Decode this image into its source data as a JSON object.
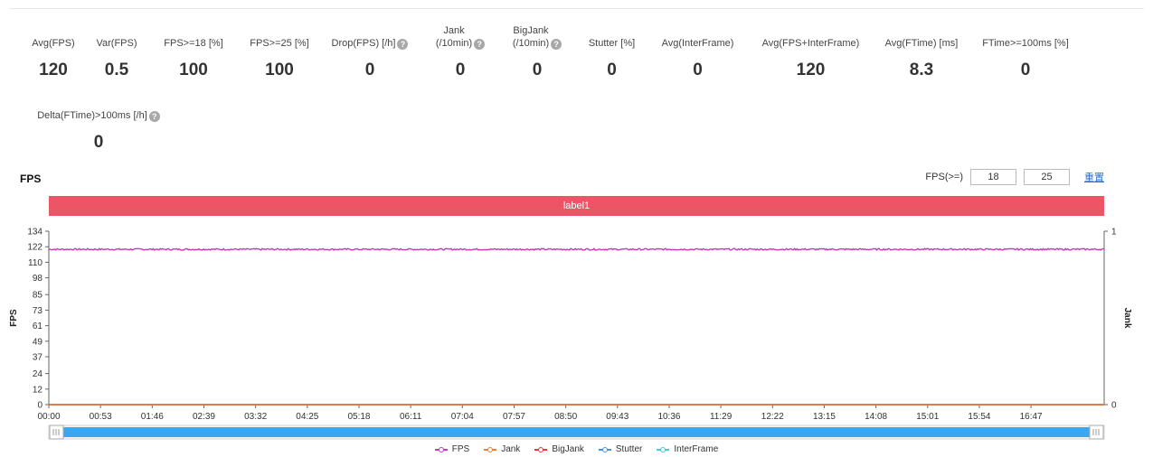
{
  "stats_row1": [
    {
      "label": "Avg(FPS)",
      "value": "120",
      "help": false
    },
    {
      "label": "Var(FPS)",
      "value": "0.5",
      "help": false
    },
    {
      "label": "FPS>=18 [%]",
      "value": "100",
      "help": false
    },
    {
      "label": "FPS>=25 [%]",
      "value": "100",
      "help": false
    },
    {
      "label": "Drop(FPS) [/h]",
      "value": "0",
      "help": true
    },
    {
      "label": "Jank\n(/10min)",
      "value": "0",
      "help": true
    },
    {
      "label": "BigJank\n(/10min)",
      "value": "0",
      "help": true
    },
    {
      "label": "Stutter [%]",
      "value": "0",
      "help": false
    },
    {
      "label": "Avg(InterFrame)",
      "value": "0",
      "help": false
    },
    {
      "label": "Avg(FPS+InterFrame)",
      "value": "120",
      "help": false
    },
    {
      "label": "Avg(FTime) [ms]",
      "value": "8.3",
      "help": false
    },
    {
      "label": "FTime>=100ms [%]",
      "value": "0",
      "help": false
    }
  ],
  "stats_row2": [
    {
      "label": "Delta(FTime)>100ms [/h]",
      "value": "0",
      "help": true
    }
  ],
  "help_symbol": "?",
  "chart_section": {
    "title": "FPS",
    "threshold_label": "FPS(>=)",
    "threshold_low": "18",
    "threshold_high": "25",
    "reset_label": "重置",
    "band_label": "label1"
  },
  "chart_data": {
    "type": "line",
    "y_left_label": "FPS",
    "y_right_label": "Jank",
    "y_left_ticks": [
      0,
      12,
      24,
      37,
      49,
      61,
      73,
      85,
      98,
      110,
      122,
      134
    ],
    "y_left_range": [
      0,
      134
    ],
    "y_right_ticks": [
      0,
      1
    ],
    "y_right_range": [
      0,
      1
    ],
    "x_ticks": [
      "00:00",
      "00:53",
      "01:46",
      "02:39",
      "03:32",
      "04:25",
      "05:18",
      "06:11",
      "07:04",
      "07:57",
      "08:50",
      "09:43",
      "10:36",
      "11:29",
      "12:22",
      "13:15",
      "14:08",
      "15:01",
      "15:54",
      "16:47"
    ],
    "x_range_seconds": [
      0,
      1082
    ],
    "series": [
      {
        "name": "FPS",
        "color": "#c23bb4",
        "axis": "left",
        "mean": 120,
        "noise": 0.6
      },
      {
        "name": "Jank",
        "color": "#f07d35",
        "axis": "right",
        "mean": 0,
        "noise": 0
      },
      {
        "name": "BigJank",
        "color": "#e83a3a",
        "axis": "right",
        "mean": 0,
        "noise": 0
      },
      {
        "name": "Stutter",
        "color": "#4a90e2",
        "axis": "right",
        "mean": 0,
        "noise": 0
      },
      {
        "name": "InterFrame",
        "color": "#3fd0d0",
        "axis": "left",
        "mean": 0,
        "noise": 0
      }
    ],
    "grid": false,
    "legend_position": "bottom"
  },
  "slider": {
    "fill_color": "#3ba7f0"
  }
}
